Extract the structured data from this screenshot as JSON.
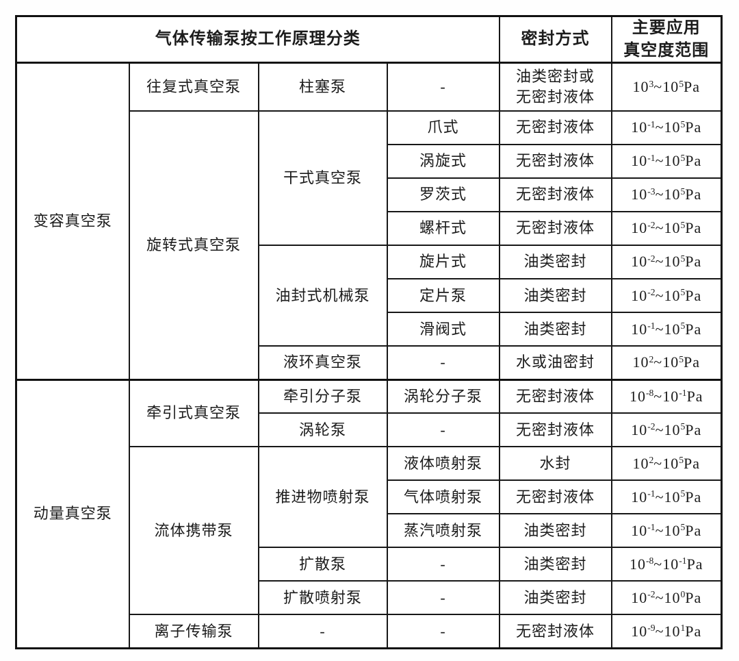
{
  "table": {
    "header": {
      "classification": "气体传输泵按工作原理分类",
      "seal_method": "密封方式",
      "vacuum_range": "主要应用\n真空度范围"
    },
    "rows": [
      {
        "category": "变容真空泵",
        "subcategory": "往复式真空泵",
        "type": "柱塞泵",
        "subtype": "-",
        "seal": "油类密封或\n无密封液体",
        "range": "10^3~10^5Pa"
      },
      {
        "subcategory": "旋转式真空泵",
        "type": "干式真空泵",
        "subtype": "爪式",
        "seal": "无密封液体",
        "range": "10^-1~10^5Pa"
      },
      {
        "subtype": "涡旋式",
        "seal": "无密封液体",
        "range": "10^-1~10^5Pa"
      },
      {
        "subtype": "罗茨式",
        "seal": "无密封液体",
        "range": "10^-3~10^5Pa"
      },
      {
        "subtype": "螺杆式",
        "seal": "无密封液体",
        "range": "10^-2~10^5Pa"
      },
      {
        "type": "油封式机械泵",
        "subtype": "旋片式",
        "seal": "油类密封",
        "range": "10^-2~10^5Pa"
      },
      {
        "subtype": "定片泵",
        "seal": "油类密封",
        "range": "10^-2~10^5Pa"
      },
      {
        "subtype": "滑阀式",
        "seal": "油类密封",
        "range": "10^-1~10^5Pa"
      },
      {
        "type": "液环真空泵",
        "subtype": "-",
        "seal": "水或油密封",
        "range": "10^2~10^5Pa"
      },
      {
        "category": "动量真空泵",
        "subcategory": "牵引式真空泵",
        "type": "牵引分子泵",
        "subtype": "涡轮分子泵",
        "seal": "无密封液体",
        "range": "10^-8~10^-1Pa"
      },
      {
        "type": "涡轮泵",
        "subtype": "-",
        "seal": "无密封液体",
        "range": "10^-2~10^5Pa"
      },
      {
        "subcategory": "流体携带泵",
        "type": "推进物喷射泵",
        "subtype": "液体喷射泵",
        "seal": "水封",
        "range": "10^2~10^5Pa"
      },
      {
        "subtype": "气体喷射泵",
        "seal": "无密封液体",
        "range": "10^-1~10^5Pa"
      },
      {
        "subtype": "蒸汽喷射泵",
        "seal": "油类密封",
        "range": "10^-1~10^5Pa"
      },
      {
        "type": "扩散泵",
        "subtype": "-",
        "seal": "油类密封",
        "range": "10^-8~10^-1Pa"
      },
      {
        "type": "扩散喷射泵",
        "subtype": "-",
        "seal": "油类密封",
        "range": "10^-2~10^0Pa"
      },
      {
        "subcategory": "离子传输泵",
        "type": "-",
        "subtype": "-",
        "seal": "无密封液体",
        "range": "10^-9~10^1Pa"
      }
    ]
  }
}
